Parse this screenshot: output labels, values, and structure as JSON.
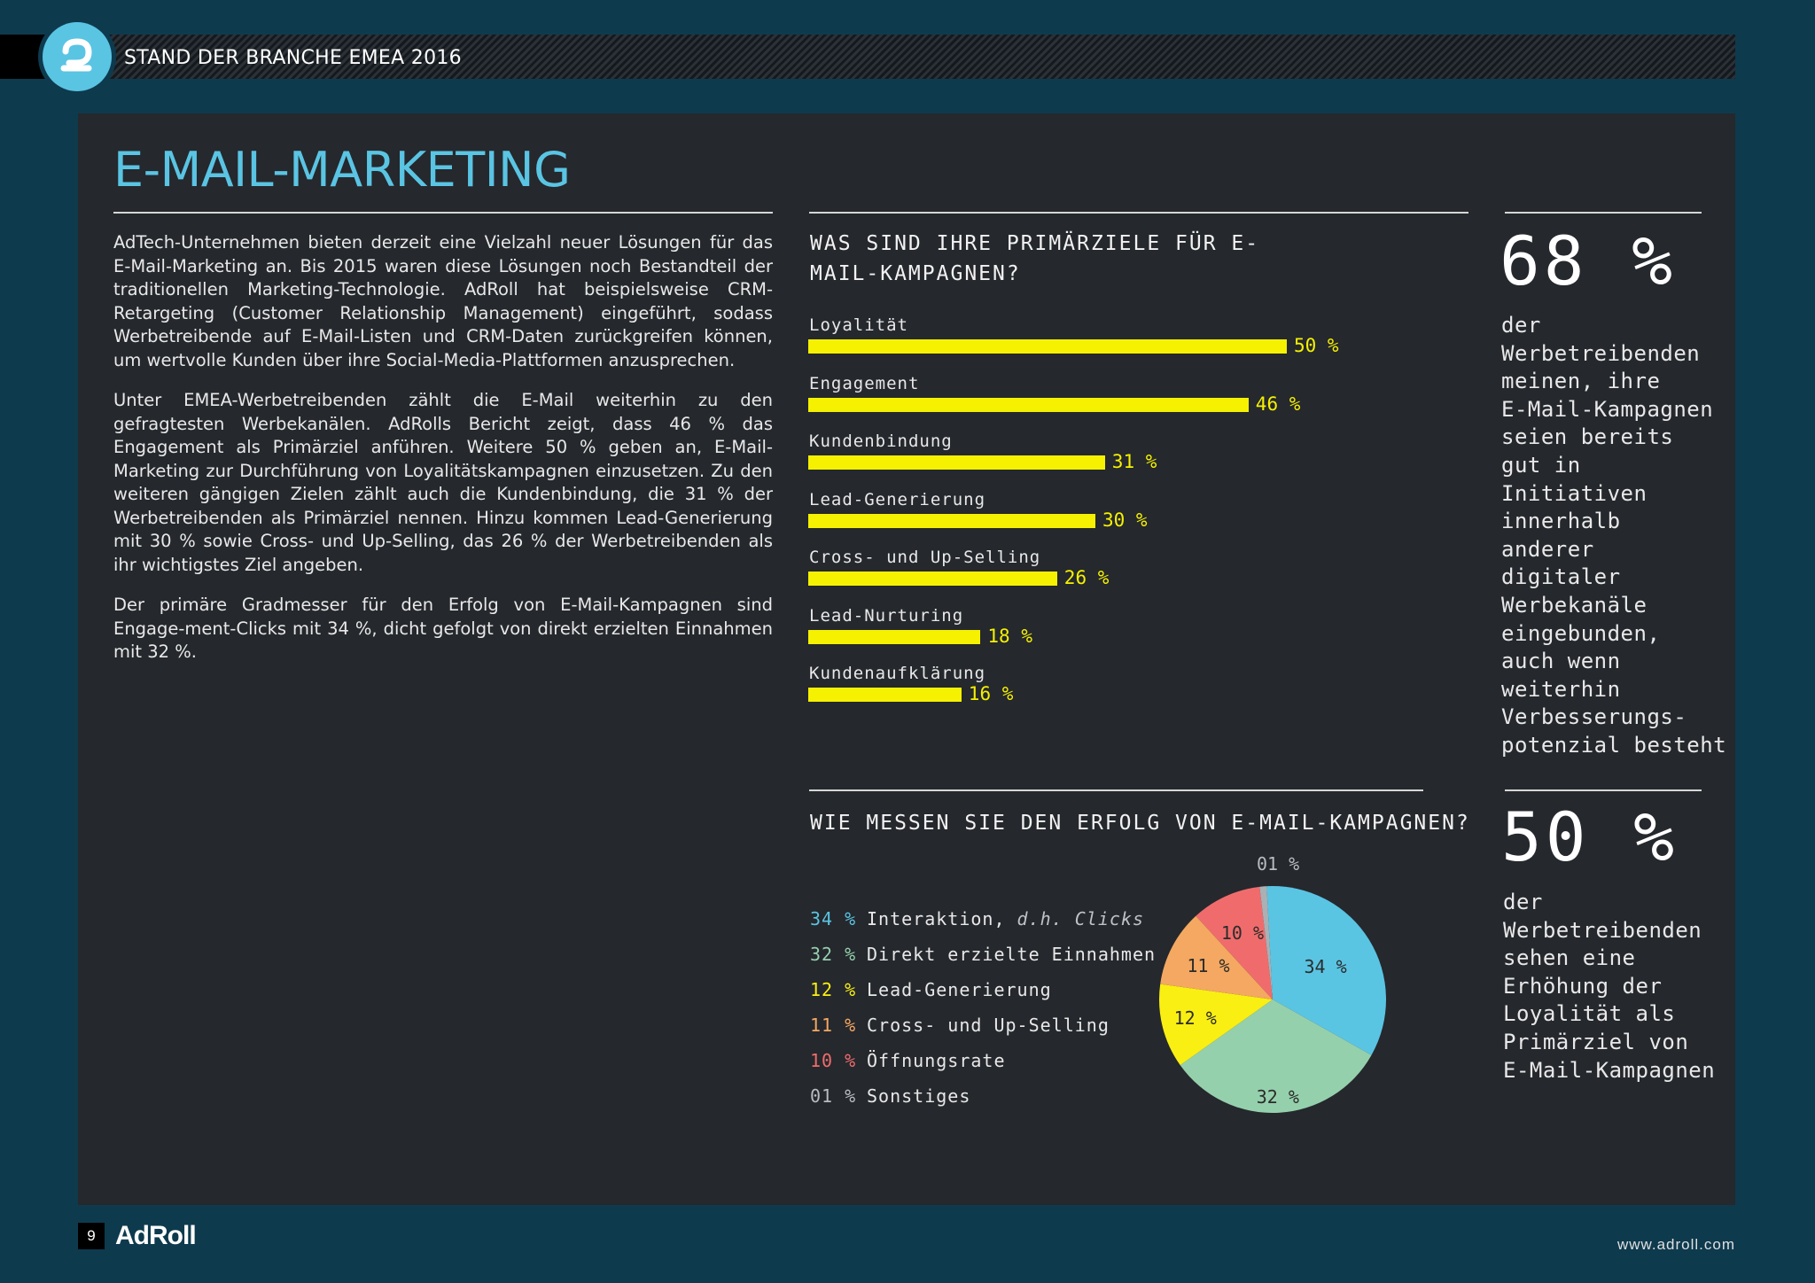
{
  "header": {
    "title": "STAND DER BRANCHE EMEA 2016",
    "logo_icon": "adroll-logo-icon"
  },
  "page": {
    "title": "E-MAIL-MARKETING",
    "paragraphs": [
      "AdTech-Unternehmen bieten derzeit eine Vielzahl neuer Lösungen für das E-Mail-Marketing an. Bis 2015 waren diese Lösungen noch Bestandteil der traditionellen Marketing-Technologie. AdRoll hat beispielsweise CRM-Retargeting (Customer Relationship Management) eingeführt, sodass Werbetreibende auf E-Mail-Listen und CRM-Daten zurückgreifen können, um wertvolle Kunden über ihre Social-Media-Plattformen anzusprechen.",
      "Unter EMEA-Werbetreibenden zählt die E-Mail weiterhin zu den gefragtesten Werbekanälen. AdRolls Bericht zeigt, dass 46 % das Engagement als Primärziel anführen. Weitere 50 % geben an, E-Mail-Marketing zur Durchführung von Loyalitätskampagnen einzusetzen. Zu den weiteren gängigen Zielen zählt auch die Kundenbindung, die 31 % der Werbetreibenden als Primärziel nennen. Hinzu kommen Lead-Generierung mit 30 % sowie Cross- und Up-Selling, das 26 % der Werbetreibenden als ihr wichtigstes Ziel angeben.",
      "Der primäre Gradmesser für den Erfolg von E-Mail-Kampagnen sind Engage-ment-Clicks mit 34 %, dicht gefolgt von direkt erzielten Einnahmen mit 32 %."
    ]
  },
  "chart_data": [
    {
      "type": "bar",
      "title": "WAS SIND IHRE PRIMÄRZIELE FÜR E-MAIL-KAMPAGNEN?",
      "categories": [
        "Loyalität",
        "Engagement",
        "Kundenbindung",
        "Lead-Generierung",
        "Cross- und Up-Selling",
        "Lead-Nurturing",
        "Kundenaufklärung"
      ],
      "values": [
        50,
        46,
        31,
        30,
        26,
        18,
        16
      ],
      "value_labels": [
        "50 %",
        "46 %",
        "31 %",
        "30 %",
        "26 %",
        "18 %",
        "16 %"
      ],
      "orientation": "horizontal",
      "color": "#f5f100"
    },
    {
      "type": "pie",
      "title": "WIE MESSEN SIE DEN ERFOLG VON E-MAIL-KAMPAGNEN?",
      "slices": [
        {
          "pct_label": "34 %",
          "label": "Interaktion,",
          "label_italic": "d.h. Clicks",
          "value": 34,
          "color": "#5ac4e3"
        },
        {
          "pct_label": "32 %",
          "label": "Direkt erzielte Einnahmen",
          "value": 32,
          "color": "#95d0ad"
        },
        {
          "pct_label": "12 %",
          "label": "Lead-Generierung",
          "value": 12,
          "color": "#f9ef12"
        },
        {
          "pct_label": "11 %",
          "label": "Cross- und Up-Selling",
          "value": 11,
          "color": "#f4a861"
        },
        {
          "pct_label": "10 %",
          "label": "Öffnungsrate",
          "value": 10,
          "color": "#f06c6c"
        },
        {
          "pct_label": "01 %",
          "label": "Sonstiges",
          "value": 1,
          "color": "#aab0b4"
        }
      ],
      "pie_labels": [
        "34 %",
        "32 %",
        "12 %",
        "11 %",
        "10 %",
        "01 %"
      ]
    }
  ],
  "stats": [
    {
      "big": "68 %",
      "text": "der\nWerbetreibenden\nmeinen, ihre\nE-Mail-Kampagnen\nseien bereits\ngut in\nInitiativen\ninnerhalb\nanderer\ndigitaler\nWerbekanäle\neingebunden,\nauch wenn\nweiterhin\nVerbesserungs-\npotenzial besteht"
    },
    {
      "big": "50 %",
      "text": "der\nWerbetreibenden\nsehen eine\nErhöhung der\nLoyalität als\nPrimärziel von\nE-Mail-Kampagnen"
    }
  ],
  "footer": {
    "page_number": "9",
    "brand": "AdRoll",
    "url": "www.adroll.com"
  }
}
